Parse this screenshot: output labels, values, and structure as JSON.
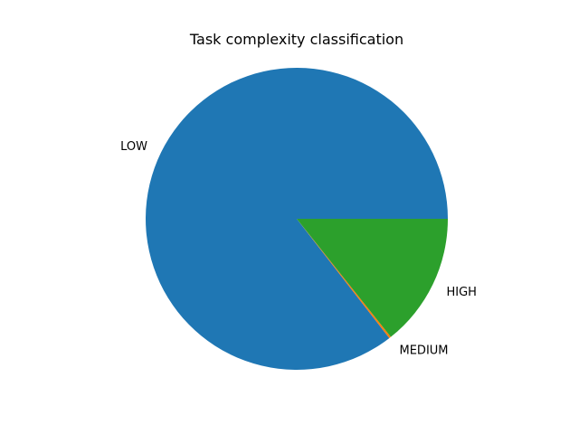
{
  "chart_data": {
    "type": "pie",
    "title": "Task complexity classification",
    "labels": [
      "LOW",
      "MEDIUM",
      "HIGH"
    ],
    "values": [
      85.5,
      0.2,
      14.3
    ],
    "colors": [
      "#1f77b4",
      "#ff7f0e",
      "#2ca02c"
    ],
    "start_angle_deg": 0,
    "direction": "counterclockwise",
    "legend": "none"
  }
}
